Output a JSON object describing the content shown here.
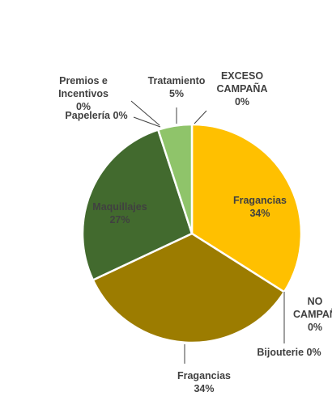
{
  "chart_data": {
    "type": "pie",
    "slices": [
      {
        "id": "fragancias-1",
        "name": "Fragancias",
        "value": 34,
        "pct_label": "34%",
        "color": "#FFC000",
        "lines": [
          "Fragancias",
          "34%"
        ],
        "label_color": "#404040"
      },
      {
        "id": "no-campana",
        "name": "NO CAMPAÑA",
        "value": 0,
        "pct_label": "0%",
        "color": "#FFC000",
        "lines": [
          "NO",
          "CAMPAÑ",
          "0%"
        ],
        "label_color": "#404040"
      },
      {
        "id": "bijouterie",
        "name": "Bijouterie",
        "value": 0,
        "pct_label": "0%",
        "color": "#9C7C00",
        "lines": [
          "Bijouterie 0%"
        ],
        "label_color": "#404040"
      },
      {
        "id": "fragancias-2",
        "name": "Fragancias",
        "value": 34,
        "pct_label": "34%",
        "color": "#9C7C00",
        "lines": [
          "Fragancias",
          "34%"
        ],
        "label_color": "#404040"
      },
      {
        "id": "maquillajes",
        "name": "Maquillajes",
        "value": 27,
        "pct_label": "27%",
        "color": "#426A2E",
        "lines": [
          "Maquillajes",
          "27%"
        ],
        "label_color": "#404040"
      },
      {
        "id": "papeleria",
        "name": "Papelería",
        "value": 0,
        "pct_label": "0%",
        "color": "#426A2E",
        "lines": [
          "Papelería 0%"
        ],
        "label_color": "#404040"
      },
      {
        "id": "premios-incentivos",
        "name": "Premios e Incentivos",
        "value": 0,
        "pct_label": "0%",
        "color": "#426A2E",
        "lines": [
          "Premios e",
          "Incentivos",
          "0%"
        ],
        "label_color": "#404040"
      },
      {
        "id": "tratamiento",
        "name": "Tratamiento",
        "value": 5,
        "pct_label": "5%",
        "color": "#8FC46A",
        "lines": [
          "Tratamiento",
          "5%"
        ],
        "label_color": "#404040"
      },
      {
        "id": "exceso-campana",
        "name": "EXCESO CAMPAÑA",
        "value": 0,
        "pct_label": "0%",
        "color": "#8FC46A",
        "lines": [
          "EXCESO",
          "CAMPAÑA",
          "0%"
        ],
        "label_color": "#404040"
      }
    ],
    "start_angle_deg": 0,
    "direction": "clockwise",
    "legend": "none",
    "title": ""
  }
}
